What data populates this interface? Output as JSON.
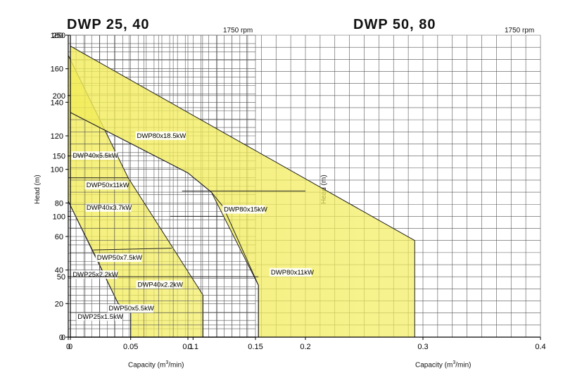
{
  "chart_data": [
    {
      "type": "area",
      "title": "DWP 25, 40",
      "annotation": "1750 rpm",
      "xlabel_prefix": "Capacity (m",
      "xlabel_sup": "3",
      "xlabel_suffix": "/min)",
      "ylabel": "Head (m)",
      "xlim": [
        0,
        0.15
      ],
      "ylim": [
        0,
        180
      ],
      "xticks": [
        0,
        0.05,
        0.1,
        0.15
      ],
      "xtick_labels": [
        "0",
        "0.05",
        "0.1",
        "0.15"
      ],
      "yticks": [
        0,
        20,
        40,
        60,
        80,
        100,
        120,
        140,
        160,
        180
      ],
      "ytick_labels": [
        "0",
        "20",
        "40",
        "60",
        "80",
        "100",
        "120",
        "140",
        "160",
        "180"
      ],
      "grid": true,
      "fill_color": "#f2ec5a",
      "regions": [
        {
          "outline": [
            [
              0,
              168
            ],
            [
              0.048,
              95
            ],
            [
              0.108,
              25
            ],
            [
              0.108,
              0
            ],
            [
              0.05,
              0
            ],
            [
              0.05,
              15
            ],
            [
              0.04,
              20
            ],
            [
              0,
              81
            ]
          ],
          "label_colors": "yellow"
        }
      ],
      "lines": [
        [
          [
            0,
            95
          ],
          [
            0.048,
            95
          ]
        ],
        [
          [
            0,
            81
          ],
          [
            0.02,
            51
          ],
          [
            0.04,
            20
          ],
          [
            0.05,
            15
          ],
          [
            0.05,
            0
          ]
        ],
        [
          [
            0.02,
            52
          ],
          [
            0.083,
            53
          ]
        ]
      ],
      "labels": [
        {
          "text": "DWP40x5.5kW",
          "x": 0.003,
          "y": 107
        },
        {
          "text": "DWP40x3.7kW",
          "x": 0.014,
          "y": 76
        },
        {
          "text": "DWP25x2.2kW",
          "x": 0.003,
          "y": 36
        },
        {
          "text": "DWP40x2.2kW",
          "x": 0.055,
          "y": 30
        },
        {
          "text": "DWP25x1.5kW",
          "x": 0.007,
          "y": 11
        }
      ]
    },
    {
      "type": "area",
      "title": "DWP 50, 80",
      "annotation": "1750 rpm",
      "xlabel_prefix": "Capacity (m",
      "xlabel_sup": "3",
      "xlabel_suffix": "/min)",
      "ylabel": "Head (m)",
      "xlim": [
        0,
        0.4
      ],
      "ylim": [
        0,
        250
      ],
      "xticks": [
        0,
        0.1,
        0.2,
        0.3,
        0.4
      ],
      "xtick_labels": [
        "0",
        "0.1",
        "0.2",
        "0.3",
        "0.4"
      ],
      "yticks": [
        0,
        50,
        100,
        150,
        200,
        250
      ],
      "ytick_labels": [
        "0",
        "50",
        "100",
        "150",
        "200",
        "250"
      ],
      "grid": true,
      "fill_color": "#f2ec5a",
      "regions": [
        {
          "outline": [
            [
              0,
              241
            ],
            [
              0.293,
              80
            ],
            [
              0.293,
              0
            ],
            [
              0.16,
              0
            ],
            [
              0.16,
              43
            ],
            [
              0.12,
              120
            ],
            [
              0.1,
              136
            ],
            [
              0,
              186
            ]
          ]
        }
      ],
      "lines": [
        [
          [
            0,
            186
          ],
          [
            0.1,
            136
          ],
          [
            0.12,
            120
          ],
          [
            0.13,
            108
          ],
          [
            0.16,
            43
          ],
          [
            0.16,
            0
          ]
        ],
        [
          [
            0.095,
            121
          ],
          [
            0.2,
            121
          ]
        ],
        [
          [
            0,
            50
          ],
          [
            0.16,
            50
          ]
        ],
        [
          [
            0.085,
            100
          ],
          [
            0.13,
            100
          ]
        ]
      ],
      "labels": [
        {
          "text": "DWP80x18.5kW",
          "x": 0.056,
          "y": 165
        },
        {
          "text": "DWP50x11kW",
          "x": 0.013,
          "y": 124
        },
        {
          "text": "DWP80x15kW",
          "x": 0.13,
          "y": 104
        },
        {
          "text": "DWP50x7.5kW",
          "x": 0.022,
          "y": 64
        },
        {
          "text": "DWP80x11kW",
          "x": 0.17,
          "y": 52
        },
        {
          "text": "DWP50x5.5kW",
          "x": 0.032,
          "y": 22
        }
      ]
    }
  ]
}
